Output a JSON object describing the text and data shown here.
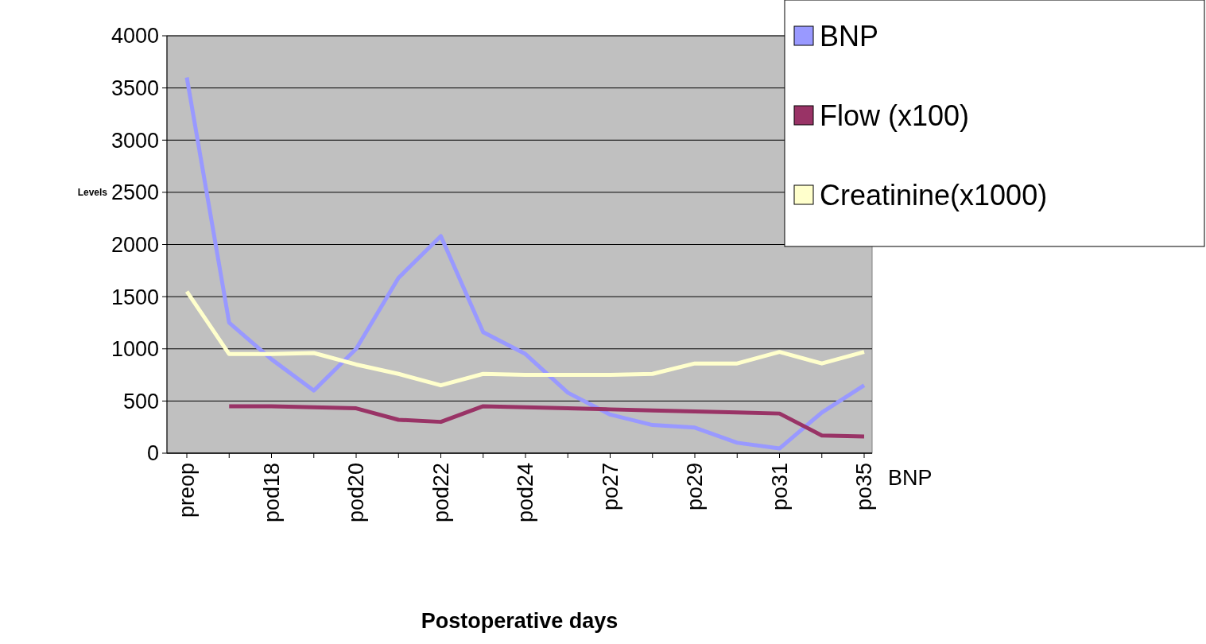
{
  "chart_data": {
    "type": "line",
    "xlabel": "Postoperative days",
    "ylabel": "Levels",
    "categories": [
      "preop",
      null,
      "pod18",
      null,
      "pod20",
      null,
      "pod22",
      null,
      "pod24",
      null,
      "po27",
      null,
      "po29",
      null,
      "po31",
      null,
      "po35"
    ],
    "series": [
      {
        "name": "BNP",
        "color": "#9999ff",
        "values": [
          3600,
          1250,
          900,
          600,
          1000,
          1680,
          2080,
          1160,
          950,
          580,
          370,
          270,
          245,
          100,
          45,
          390,
          650
        ]
      },
      {
        "name": "Flow (x100)",
        "color": "#993366",
        "values": [
          null,
          450,
          450,
          440,
          430,
          320,
          300,
          450,
          440,
          430,
          420,
          410,
          400,
          390,
          380,
          170,
          160
        ]
      },
      {
        "name": "Creatinine(x1000)",
        "color": "#ffffcc",
        "values": [
          1550,
          950,
          950,
          960,
          850,
          760,
          650,
          760,
          750,
          750,
          750,
          760,
          860,
          860,
          970,
          860,
          970
        ]
      }
    ],
    "ylim": [
      0,
      4000
    ],
    "yticks": [
      0,
      500,
      1000,
      1500,
      2000,
      2500,
      3000,
      3500,
      4000
    ],
    "grid": "y",
    "legend": "top right",
    "annotations": [
      "BNP"
    ]
  }
}
